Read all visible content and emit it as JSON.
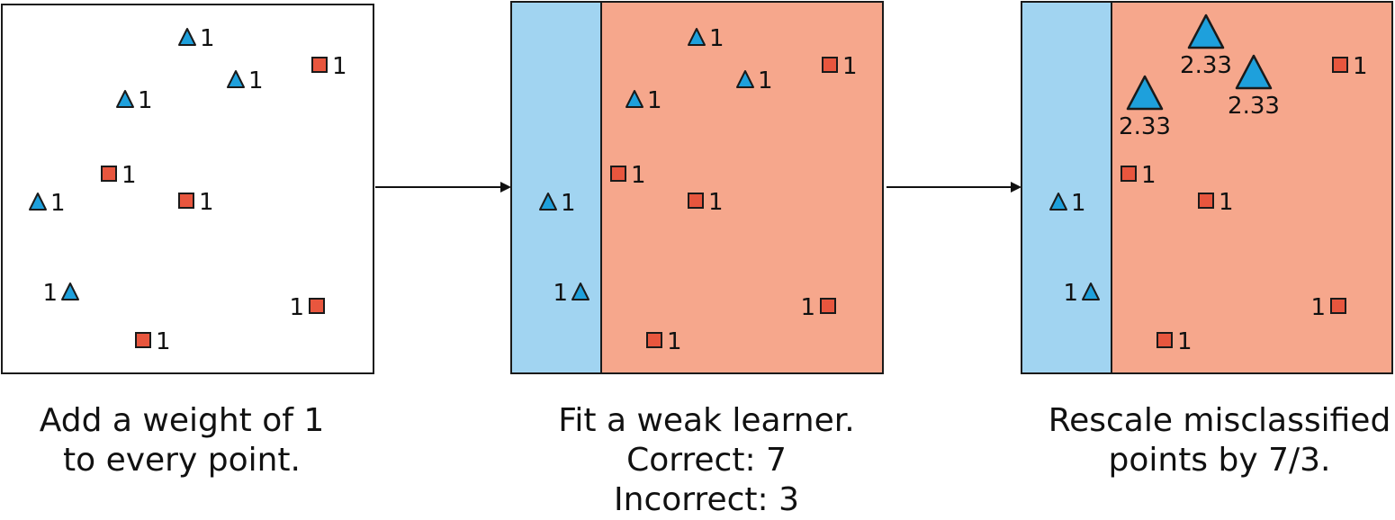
{
  "colors": {
    "triangle": "#1ea0dc",
    "square": "#e8563e",
    "region_left": "#a1d4f1",
    "region_right": "#f6a78c",
    "stroke": "#1a1a1a"
  },
  "panels": [
    {
      "caption": [
        "Add a weight of 1",
        "to every point."
      ],
      "points": [
        {
          "shape": "triangle",
          "label": "1",
          "label_side": "right",
          "size": "small"
        },
        {
          "shape": "triangle",
          "label": "1",
          "label_side": "right",
          "size": "small"
        },
        {
          "shape": "square",
          "label": "1",
          "label_side": "right",
          "size": "small"
        },
        {
          "shape": "triangle",
          "label": "1",
          "label_side": "right",
          "size": "small"
        },
        {
          "shape": "square",
          "label": "1",
          "label_side": "right",
          "size": "small"
        },
        {
          "shape": "triangle",
          "label": "1",
          "label_side": "right",
          "size": "small"
        },
        {
          "shape": "square",
          "label": "1",
          "label_side": "right",
          "size": "small"
        },
        {
          "shape": "triangle",
          "label": "1",
          "label_side": "left",
          "size": "small"
        },
        {
          "shape": "square",
          "label": "1",
          "label_side": "left",
          "size": "small"
        },
        {
          "shape": "square",
          "label": "1",
          "label_side": "right",
          "size": "small"
        }
      ]
    },
    {
      "caption": [
        "Fit a weak learner.",
        "Correct: 7",
        "Incorrect: 3"
      ],
      "points": [
        {
          "shape": "triangle",
          "label": "1",
          "label_side": "right",
          "size": "small"
        },
        {
          "shape": "triangle",
          "label": "1",
          "label_side": "right",
          "size": "small"
        },
        {
          "shape": "square",
          "label": "1",
          "label_side": "right",
          "size": "small"
        },
        {
          "shape": "triangle",
          "label": "1",
          "label_side": "right",
          "size": "small"
        },
        {
          "shape": "square",
          "label": "1",
          "label_side": "right",
          "size": "small"
        },
        {
          "shape": "triangle",
          "label": "1",
          "label_side": "right",
          "size": "small"
        },
        {
          "shape": "square",
          "label": "1",
          "label_side": "right",
          "size": "small"
        },
        {
          "shape": "triangle",
          "label": "1",
          "label_side": "left",
          "size": "small"
        },
        {
          "shape": "square",
          "label": "1",
          "label_side": "left",
          "size": "small"
        },
        {
          "shape": "square",
          "label": "1",
          "label_side": "right",
          "size": "small"
        }
      ]
    },
    {
      "caption": [
        "Rescale misclassified",
        "points by 7/3."
      ],
      "points": [
        {
          "shape": "triangle",
          "label": "2.33",
          "label_side": "below",
          "size": "large"
        },
        {
          "shape": "triangle",
          "label": "2.33",
          "label_side": "below",
          "size": "large"
        },
        {
          "shape": "square",
          "label": "1",
          "label_side": "right",
          "size": "small"
        },
        {
          "shape": "triangle",
          "label": "2.33",
          "label_side": "below",
          "size": "large"
        },
        {
          "shape": "square",
          "label": "1",
          "label_side": "right",
          "size": "small"
        },
        {
          "shape": "triangle",
          "label": "1",
          "label_side": "right",
          "size": "small"
        },
        {
          "shape": "square",
          "label": "1",
          "label_side": "right",
          "size": "small"
        },
        {
          "shape": "triangle",
          "label": "1",
          "label_side": "left",
          "size": "small"
        },
        {
          "shape": "square",
          "label": "1",
          "label_side": "left",
          "size": "small"
        },
        {
          "shape": "square",
          "label": "1",
          "label_side": "right",
          "size": "small"
        }
      ]
    }
  ]
}
